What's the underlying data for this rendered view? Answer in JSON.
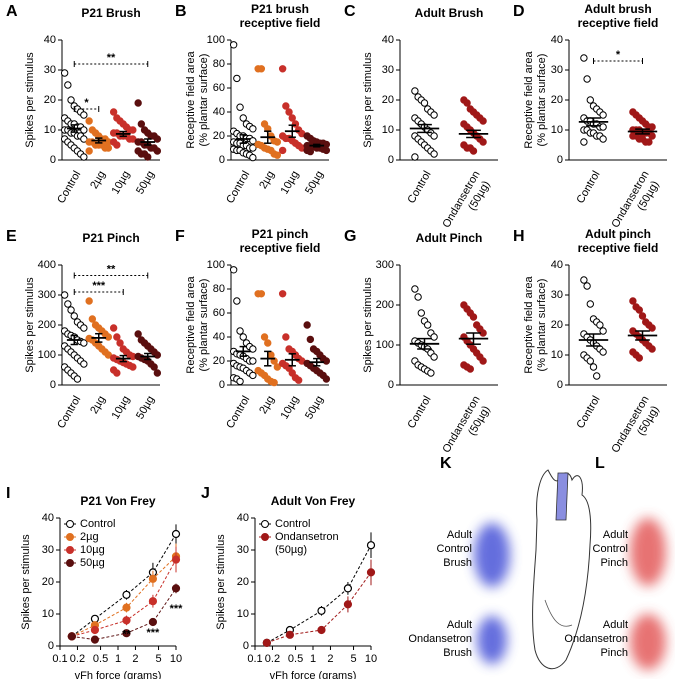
{
  "chart_data": [
    {
      "type": "dotplot",
      "panel": "A",
      "title": "P21 Brush",
      "ylabel": "Spikes per stimulus",
      "categories": [
        "Control",
        "2µg",
        "10µg",
        "50µg"
      ],
      "ylim": [
        0,
        40
      ],
      "yticks": [
        0,
        10,
        20,
        30,
        40
      ],
      "groups": [
        {
          "color": "#ffffff",
          "edgecolor": "#000000",
          "values": [
            29,
            25,
            20,
            18,
            17,
            16,
            15,
            14,
            13,
            12,
            12,
            11,
            11,
            10,
            10,
            10,
            9,
            9,
            8,
            8,
            7,
            7,
            6,
            5,
            4,
            3,
            2,
            1
          ],
          "mean": 10.5,
          "sem": 1.2
        },
        {
          "color": "#e07020",
          "edgecolor": "#e07020",
          "values": [
            13,
            10,
            9,
            8,
            7,
            7,
            6,
            6,
            6,
            5,
            5,
            5,
            4,
            4,
            3
          ],
          "mean": 6.5,
          "sem": 0.8
        },
        {
          "color": "#c8302a",
          "edgecolor": "#c8302a",
          "values": [
            16,
            14,
            13,
            12,
            11,
            10,
            10,
            9,
            9,
            8,
            8,
            8,
            7,
            7,
            6,
            5
          ],
          "mean": 8.7,
          "sem": 0.8
        },
        {
          "color": "#5a0f0f",
          "edgecolor": "#5a0f0f",
          "values": [
            19,
            12,
            10,
            9,
            8,
            8,
            7,
            6,
            6,
            5,
            5,
            4,
            4,
            3,
            3,
            2,
            2,
            1
          ],
          "mean": 6,
          "sem": 1
        }
      ],
      "brackets": [
        {
          "between": [
            "Control",
            "2µg"
          ],
          "y": 17,
          "label": "*"
        },
        {
          "between": [
            "Control",
            "50µg"
          ],
          "y": 32,
          "label": "**"
        }
      ]
    },
    {
      "type": "dotplot",
      "panel": "B",
      "title": [
        "P21 brush",
        "receptive field"
      ],
      "ylabel": [
        "Receptive field area",
        "(% plantar surface)"
      ],
      "categories": [
        "Control",
        "2µg",
        "10µg",
        "50µg"
      ],
      "ylim": [
        0,
        100
      ],
      "yticks": [
        0,
        20,
        40,
        60,
        80,
        100
      ],
      "groups": [
        {
          "color": "#ffffff",
          "edgecolor": "#000000",
          "values": [
            96,
            68,
            44,
            35,
            30,
            28,
            26,
            24,
            22,
            20,
            20,
            18,
            18,
            16,
            15,
            14,
            14,
            12,
            12,
            10,
            10,
            9,
            8,
            8,
            6,
            5,
            4,
            2
          ],
          "mean": 17.5,
          "sem": 3.5
        },
        {
          "color": "#e07020",
          "edgecolor": "#e07020",
          "values": [
            76,
            76,
            30,
            26,
            20,
            16,
            15,
            13,
            12,
            10,
            9,
            8,
            5,
            4
          ],
          "mean": 19,
          "sem": 5
        },
        {
          "color": "#c8302a",
          "edgecolor": "#c8302a",
          "values": [
            76,
            45,
            40,
            35,
            30,
            25,
            22,
            20,
            18,
            18,
            16,
            14,
            12,
            10,
            8
          ],
          "mean": 24,
          "sem": 5
        },
        {
          "color": "#5a0f0f",
          "edgecolor": "#5a0f0f",
          "values": [
            20,
            18,
            16,
            15,
            14,
            14,
            13,
            12,
            12,
            11,
            10,
            10,
            9,
            8,
            8,
            7
          ],
          "mean": 12,
          "sem": 1
        }
      ]
    },
    {
      "type": "dotplot",
      "panel": "C",
      "title": "Adult Brush",
      "ylabel": "Spikes per stimulus",
      "categories": [
        "Control",
        [
          "Ondansetron",
          "(50µg)"
        ]
      ],
      "ylim": [
        0,
        40
      ],
      "yticks": [
        0,
        10,
        20,
        30,
        40
      ],
      "groups": [
        {
          "color": "#ffffff",
          "edgecolor": "#000000",
          "values": [
            23,
            21,
            20,
            19,
            17,
            16,
            15,
            14,
            13,
            12,
            11,
            10,
            9,
            8,
            8,
            7,
            6,
            5,
            4,
            3,
            2,
            1
          ],
          "mean": 10.5,
          "sem": 1.3
        },
        {
          "color": "#a01818",
          "edgecolor": "#a01818",
          "values": [
            20,
            19,
            17,
            16,
            15,
            14,
            13,
            12,
            11,
            10,
            9,
            8,
            7,
            6,
            5,
            4,
            4,
            3
          ],
          "mean": 8.7,
          "sem": 1.2
        }
      ]
    },
    {
      "type": "dotplot",
      "panel": "D",
      "title": [
        "Adult brush",
        "receptive field"
      ],
      "ylabel": [
        "Receptive field area",
        "(% plantar surface)"
      ],
      "categories": [
        "Control",
        [
          "Ondansetron",
          "(50µg)"
        ]
      ],
      "ylim": [
        0,
        40
      ],
      "yticks": [
        0,
        10,
        20,
        30,
        40
      ],
      "groups": [
        {
          "color": "#ffffff",
          "edgecolor": "#000000",
          "values": [
            34,
            27,
            20,
            18,
            17,
            16,
            15,
            14,
            13,
            13,
            12,
            12,
            11,
            11,
            10,
            10,
            9,
            9,
            8,
            8,
            7,
            6
          ],
          "mean": 12.7,
          "sem": 1.3
        },
        {
          "color": "#a01818",
          "edgecolor": "#a01818",
          "values": [
            16,
            15,
            14,
            13,
            12,
            11,
            11,
            10,
            10,
            10,
            9,
            9,
            9,
            8,
            8,
            8,
            7,
            7,
            6,
            6
          ],
          "mean": 9.5,
          "sem": 0.8
        }
      ],
      "brackets": [
        {
          "between": [
            "Control",
            1
          ],
          "y": 33,
          "label": "*"
        }
      ]
    },
    {
      "type": "dotplot",
      "panel": "E",
      "title": "P21 Pinch",
      "ylabel": "Spikes per stimulus",
      "categories": [
        "Control",
        "2µg",
        "10µg",
        "50µg"
      ],
      "ylim": [
        0,
        400
      ],
      "yticks": [
        0,
        100,
        200,
        300,
        400
      ],
      "groups": [
        {
          "color": "#ffffff",
          "edgecolor": "#000000",
          "values": [
            300,
            270,
            250,
            230,
            210,
            200,
            190,
            180,
            170,
            165,
            160,
            150,
            145,
            140,
            130,
            120,
            110,
            100,
            90,
            80,
            70,
            60,
            50,
            40,
            30,
            20
          ],
          "mean": 150,
          "sem": 15
        },
        {
          "color": "#e07020",
          "edgecolor": "#e07020",
          "values": [
            280,
            220,
            200,
            190,
            180,
            170,
            160,
            155,
            150,
            140,
            130,
            120,
            110,
            100
          ],
          "mean": 157,
          "sem": 14
        },
        {
          "color": "#c8302a",
          "edgecolor": "#c8302a",
          "values": [
            190,
            160,
            140,
            120,
            110,
            100,
            95,
            90,
            85,
            80,
            75,
            70,
            65,
            60,
            50,
            40
          ],
          "mean": 88,
          "sem": 10
        },
        {
          "color": "#5a0f0f",
          "edgecolor": "#5a0f0f",
          "values": [
            170,
            150,
            140,
            130,
            120,
            110,
            100,
            95,
            90,
            85,
            80,
            70,
            60,
            40
          ],
          "mean": 95,
          "sem": 10
        }
      ],
      "brackets": [
        {
          "between": [
            "Control",
            "10µg"
          ],
          "y": 310,
          "label": "***"
        },
        {
          "between": [
            "Control",
            "50µg"
          ],
          "y": 365,
          "label": "**"
        }
      ]
    },
    {
      "type": "dotplot",
      "panel": "F",
      "title": [
        "P21 pinch",
        "receptive field"
      ],
      "ylabel": [
        "Receptive field area",
        "(% plantar surface)"
      ],
      "categories": [
        "Control",
        "2µg",
        "10µg",
        "50µg"
      ],
      "ylim": [
        0,
        100
      ],
      "yticks": [
        0,
        20,
        40,
        60,
        80,
        100
      ],
      "groups": [
        {
          "color": "#ffffff",
          "edgecolor": "#000000",
          "values": [
            96,
            70,
            45,
            40,
            35,
            32,
            30,
            28,
            26,
            25,
            24,
            22,
            20,
            20,
            18,
            16,
            15,
            14,
            12,
            10,
            8,
            6,
            5,
            3
          ],
          "mean": 28,
          "sem": 4
        },
        {
          "color": "#e07020",
          "edgecolor": "#e07020",
          "values": [
            76,
            76,
            40,
            35,
            25,
            20,
            15,
            12,
            10,
            8,
            5,
            3,
            2
          ],
          "mean": 22,
          "sem": 6
        },
        {
          "color": "#c8302a",
          "edgecolor": "#c8302a",
          "values": [
            76,
            40,
            30,
            28,
            25,
            22,
            20,
            18,
            16,
            14,
            10,
            6,
            4
          ],
          "mean": 21,
          "sem": 5
        },
        {
          "color": "#5a0f0f",
          "edgecolor": "#5a0f0f",
          "values": [
            50,
            38,
            30,
            28,
            25,
            22,
            20,
            18,
            16,
            14,
            12,
            10,
            8,
            5
          ],
          "mean": 19,
          "sem": 3
        }
      ]
    },
    {
      "type": "dotplot",
      "panel": "G",
      "title": "Adult Pinch",
      "ylabel": "Spikes per stimulus",
      "categories": [
        "Control",
        [
          "Ondansetron",
          "(50µg)"
        ]
      ],
      "ylim": [
        0,
        300
      ],
      "yticks": [
        0,
        100,
        200,
        300
      ],
      "groups": [
        {
          "color": "#ffffff",
          "edgecolor": "#000000",
          "values": [
            240,
            220,
            180,
            160,
            150,
            130,
            120,
            110,
            105,
            100,
            95,
            90,
            80,
            70,
            60,
            50,
            45,
            40,
            35,
            30
          ],
          "mean": 103,
          "sem": 13
        },
        {
          "color": "#a01818",
          "edgecolor": "#a01818",
          "values": [
            200,
            190,
            180,
            170,
            150,
            140,
            130,
            120,
            110,
            100,
            90,
            80,
            70,
            60,
            50,
            45,
            40
          ],
          "mean": 116,
          "sem": 14
        }
      ]
    },
    {
      "type": "dotplot",
      "panel": "H",
      "title": [
        "Adult pinch",
        "receptive field"
      ],
      "ylabel": [
        "Receptive field area",
        "(% plantar surface)"
      ],
      "categories": [
        "Control",
        [
          "Ondansetron",
          "(50µg)"
        ]
      ],
      "ylim": [
        0,
        40
      ],
      "yticks": [
        0,
        10,
        20,
        30,
        40
      ],
      "groups": [
        {
          "color": "#ffffff",
          "edgecolor": "#000000",
          "values": [
            35,
            33,
            27,
            22,
            21,
            20,
            18,
            17,
            16,
            15,
            14,
            13,
            12,
            11,
            10,
            9,
            8,
            6,
            3
          ],
          "mean": 15,
          "sem": 2
        },
        {
          "color": "#a01818",
          "edgecolor": "#a01818",
          "values": [
            28,
            26,
            25,
            23,
            21,
            20,
            19,
            18,
            17,
            16,
            15,
            14,
            13,
            12,
            11,
            10,
            9
          ],
          "mean": 16.5,
          "sem": 1.5
        }
      ]
    },
    {
      "type": "line",
      "panel": "I",
      "title": "P21 Von Frey",
      "ylabel": "Spikes per stimulus",
      "xlabel": "vFh force (grams)",
      "xscale": "log",
      "xlim": [
        0.1,
        10
      ],
      "xticks": [
        0.1,
        0.2,
        0.5,
        1,
        2,
        5,
        10
      ],
      "ylim": [
        0,
        40
      ],
      "yticks": [
        0,
        10,
        20,
        30,
        40
      ],
      "legend": "upper left",
      "x": [
        0.16,
        0.4,
        1.4,
        4,
        10
      ],
      "series": [
        {
          "name": "Control",
          "color": "#000000",
          "filled": false,
          "values": [
            3,
            8.5,
            16,
            23,
            35
          ],
          "errors": [
            0.6,
            1,
            1.5,
            3,
            3
          ]
        },
        {
          "name": "2µg",
          "color": "#e07020",
          "filled": true,
          "values": [
            3,
            6.5,
            12,
            21,
            28
          ],
          "errors": [
            0.5,
            1,
            1.5,
            2.5,
            4
          ]
        },
        {
          "name": "10µg",
          "color": "#c8302a",
          "filled": true,
          "values": [
            3,
            5,
            8,
            14,
            27
          ],
          "errors": [
            0.5,
            0.8,
            1.5,
            2,
            4
          ]
        },
        {
          "name": "50µg",
          "color": "#5a0f0f",
          "filled": true,
          "values": [
            3,
            2,
            4,
            7.5,
            18
          ],
          "errors": [
            0.5,
            0.5,
            0.8,
            1,
            1.5
          ]
        }
      ],
      "annotations": [
        {
          "text": "**",
          "x": 1.4,
          "y": 3.5
        },
        {
          "text": "***",
          "x": 4,
          "y": 4
        },
        {
          "text": "***",
          "x": 10,
          "y": 11.5
        }
      ]
    },
    {
      "type": "line",
      "panel": "J",
      "title": "Adult Von Frey",
      "ylabel": "Spikes per stimulus",
      "xlabel": "vFh force (grams)",
      "xscale": "log",
      "xlim": [
        0.1,
        10
      ],
      "xticks": [
        0.1,
        0.2,
        0.5,
        1,
        2,
        5,
        10
      ],
      "ylim": [
        0,
        40
      ],
      "yticks": [
        0,
        10,
        20,
        30,
        40
      ],
      "legend": "upper left",
      "x": [
        0.16,
        0.4,
        1.4,
        4,
        10
      ],
      "series": [
        {
          "name": "Control",
          "color": "#000000",
          "filled": false,
          "values": [
            1,
            5,
            11,
            18,
            31.5
          ],
          "errors": [
            0.4,
            1,
            1.5,
            2,
            4
          ]
        },
        {
          "name": [
            "Ondansetron",
            "(50µg)"
          ],
          "color": "#a01818",
          "filled": true,
          "values": [
            1,
            3.5,
            5,
            13,
            23
          ],
          "errors": [
            0.4,
            0.8,
            1,
            2.5,
            4
          ]
        }
      ]
    }
  ],
  "diagram": {
    "panels": [
      "K",
      "L"
    ],
    "labels": [
      [
        "Adult",
        "Control",
        "Brush"
      ],
      [
        "Adult",
        "Ondansetron",
        "Brush"
      ],
      [
        "Adult",
        "Control",
        "Pinch"
      ],
      [
        "Adult",
        "Ondansetron",
        "Pinch"
      ]
    ]
  }
}
